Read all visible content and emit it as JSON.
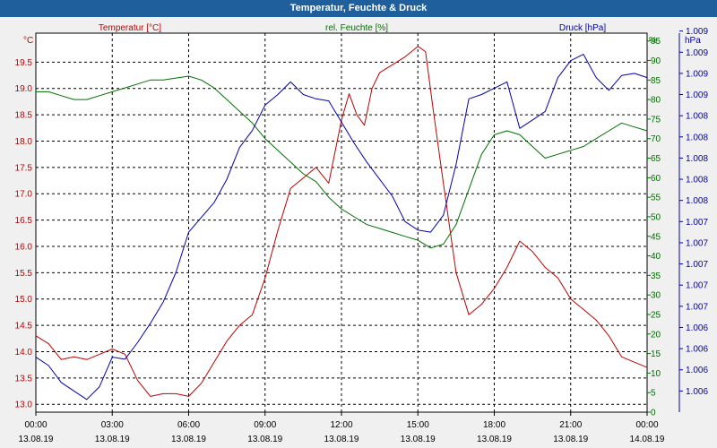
{
  "colors": {
    "title_bar": "#1e5f9c",
    "temperature": "#c00000",
    "humidity": "#007000",
    "pressure": "#0000b0",
    "grid": "#000000",
    "background": "#ffffff"
  },
  "chart_data": {
    "type": "line",
    "title": "Temperatur, Feuchte & Druck",
    "legend": {
      "temperature": "Temperatur [°C]",
      "humidity": "rel. Feuchte [%]",
      "pressure": "Druck [hPa]"
    },
    "axes": {
      "left": {
        "unit": "°C",
        "range": [
          12.85,
          20.05
        ],
        "ticks": [
          13.0,
          13.5,
          14.0,
          14.5,
          15.0,
          15.5,
          16.0,
          16.5,
          17.0,
          17.5,
          18.0,
          18.5,
          19.0,
          19.5
        ],
        "tick_labels": [
          "13.0",
          "13.5",
          "14.0",
          "14.5",
          "15.0",
          "15.5",
          "16.0",
          "16.5",
          "17.0",
          "17.5",
          "18.0",
          "18.5",
          "19.0",
          "19.5"
        ]
      },
      "middle": {
        "unit": "%",
        "range": [
          0,
          97
        ],
        "ticks": [
          0,
          5,
          10,
          15,
          20,
          25,
          30,
          35,
          40,
          45,
          50,
          55,
          60,
          65,
          70,
          75,
          80,
          85,
          90,
          95
        ],
        "tick_labels": [
          "0",
          "5",
          "10",
          "15",
          "20",
          "25",
          "30",
          "35",
          "40",
          "45",
          "50",
          "55",
          "60",
          "65",
          "70",
          "75",
          "80",
          "85",
          "90",
          "95"
        ]
      },
      "right": {
        "unit": "hPa",
        "tick_labels": [
          "1.006",
          "1.006",
          "1.006",
          "1.006",
          "1.007",
          "1.007",
          "1.007",
          "1.007",
          "1.007",
          "1.008",
          "1.008",
          "1.008",
          "1.008",
          "1.008",
          "1.009",
          "1.009",
          "1.009",
          "1.009"
        ],
        "range": [
          0,
          17.9
        ]
      },
      "x": {
        "range": [
          0,
          24
        ],
        "tick_times": [
          "00:00",
          "03:00",
          "06:00",
          "09:00",
          "12:00",
          "15:00",
          "18:00",
          "21:00",
          "00:00"
        ],
        "tick_dates": [
          "13.08.19",
          "13.08.19",
          "13.08.19",
          "13.08.19",
          "13.08.19",
          "13.08.19",
          "13.08.19",
          "13.08.19",
          "14.08.19"
        ],
        "tick_hours": [
          0,
          3,
          6,
          9,
          12,
          15,
          18,
          21,
          24
        ]
      }
    },
    "grid": true,
    "series": [
      {
        "name": "Temperatur [°C]",
        "axis": "left",
        "x": [
          0,
          0.5,
          1,
          1.5,
          2,
          2.5,
          3,
          3.5,
          4,
          4.5,
          5,
          5.5,
          6,
          6.5,
          7,
          7.5,
          8,
          8.5,
          9,
          9.5,
          10,
          10.5,
          11,
          11.5,
          12,
          12.3,
          12.6,
          12.9,
          13.2,
          13.5,
          14,
          14.5,
          15,
          15.3,
          15.6,
          16,
          16.5,
          17,
          17.5,
          18,
          18.5,
          19,
          19.5,
          20,
          20.5,
          21,
          21.5,
          22,
          22.5,
          23,
          23.5,
          24
        ],
        "values": [
          14.3,
          14.15,
          13.85,
          13.9,
          13.85,
          13.95,
          14.05,
          13.95,
          13.45,
          13.15,
          13.2,
          13.2,
          13.15,
          13.4,
          13.8,
          14.2,
          14.5,
          14.7,
          15.4,
          16.3,
          17.1,
          17.3,
          17.5,
          17.2,
          18.4,
          18.9,
          18.5,
          18.3,
          19.0,
          19.3,
          19.45,
          19.6,
          19.8,
          19.7,
          18.6,
          17.2,
          15.5,
          14.7,
          14.9,
          15.2,
          15.6,
          16.1,
          15.9,
          15.6,
          15.4,
          15.0,
          14.8,
          14.6,
          14.3,
          13.9,
          13.8,
          13.7
        ]
      },
      {
        "name": "rel. Feuchte [%]",
        "axis": "middle",
        "x": [
          0,
          0.5,
          1,
          1.5,
          2,
          2.5,
          3,
          3.5,
          4,
          4.5,
          5,
          5.5,
          6,
          6.5,
          7,
          7.5,
          8,
          8.5,
          9,
          9.5,
          10,
          10.5,
          11,
          11.5,
          12,
          12.5,
          13,
          13.5,
          14,
          14.5,
          15,
          15.5,
          16,
          16.5,
          17,
          17.5,
          18,
          18.5,
          19,
          19.5,
          20,
          20.5,
          21,
          21.5,
          22,
          22.5,
          23,
          23.5,
          24
        ],
        "values": [
          82,
          82,
          81,
          80,
          80,
          81,
          82,
          83,
          84,
          85,
          85,
          85.5,
          86,
          85,
          83,
          80,
          77,
          74,
          70,
          67,
          64,
          61,
          59,
          55,
          52,
          50,
          48,
          47,
          46,
          45,
          44,
          42,
          43,
          48,
          57,
          66,
          71,
          72,
          71,
          68,
          65,
          66,
          67,
          68,
          70,
          72,
          74,
          73,
          72
        ]
      },
      {
        "name": "Druck [hPa]",
        "axis": "right",
        "x": [
          0,
          0.5,
          1,
          1.5,
          2,
          2.5,
          3,
          3.5,
          4,
          4.5,
          5,
          5.5,
          6,
          6.5,
          7,
          7.5,
          8,
          8.5,
          9,
          9.5,
          10,
          10.5,
          11,
          11.5,
          12,
          12.5,
          13,
          13.5,
          14,
          14.5,
          15,
          15.5,
          16,
          16.5,
          17,
          17.5,
          18,
          18.5,
          19,
          19.5,
          20,
          20.5,
          21,
          21.5,
          22,
          22.5,
          23,
          23.5,
          24
        ],
        "values": [
          2.6,
          2.2,
          1.4,
          1.0,
          0.6,
          1.2,
          2.6,
          2.5,
          3.3,
          4.2,
          5.2,
          6.6,
          8.5,
          9.2,
          9.9,
          11.0,
          12.5,
          13.3,
          14.5,
          15.0,
          15.6,
          15.0,
          14.8,
          14.7,
          13.7,
          12.7,
          11.8,
          11.0,
          10.2,
          9.0,
          8.6,
          8.5,
          9.3,
          11.7,
          14.8,
          15.0,
          15.3,
          15.6,
          13.4,
          13.8,
          14.2,
          15.8,
          16.6,
          16.9,
          15.8,
          15.2,
          15.9,
          16.0,
          15.8
        ]
      }
    ]
  }
}
